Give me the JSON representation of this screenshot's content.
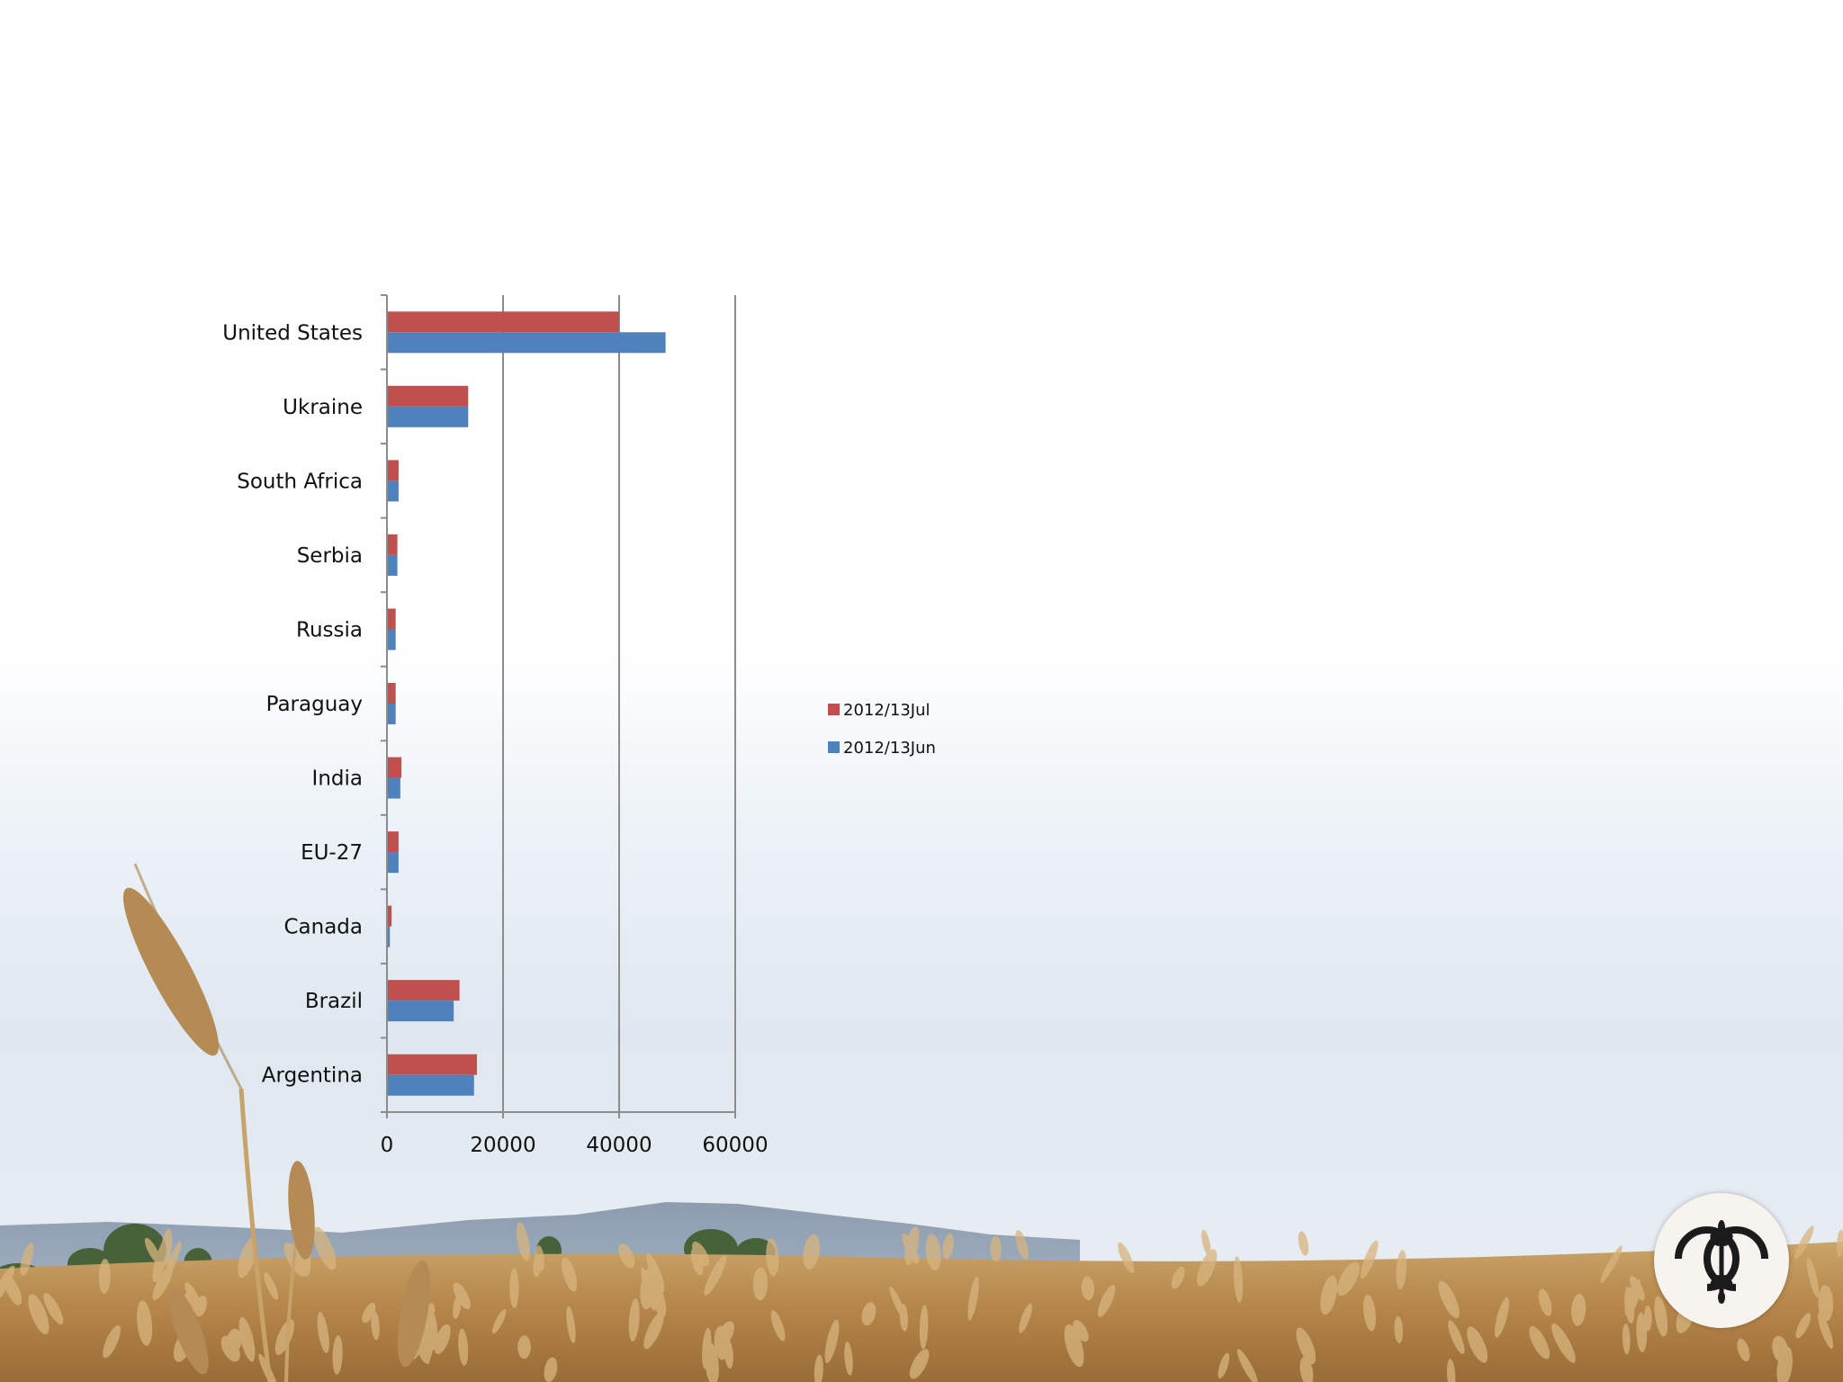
{
  "chart_data": {
    "type": "bar",
    "orientation": "horizontal",
    "categories": [
      "United States",
      "Ukraine",
      "South Africa",
      "Serbia",
      "Russia",
      "Paraguay",
      "India",
      "EU-27",
      "Canada",
      "Brazil",
      "Argentina"
    ],
    "series": [
      {
        "name": "2012/13Jul",
        "color": "#c0504d",
        "values": [
          40000,
          14000,
          2000,
          1800,
          1500,
          1500,
          2500,
          2000,
          800,
          12500,
          15500
        ]
      },
      {
        "name": "2012/13Jun",
        "color": "#4f81bd",
        "values": [
          48000,
          14000,
          2000,
          1800,
          1500,
          1500,
          2300,
          2000,
          500,
          11500,
          15000
        ]
      }
    ],
    "xlim": [
      0,
      60000
    ],
    "xticks": [
      0,
      20000,
      40000,
      60000
    ],
    "x_tick_labels": [
      "0",
      "20000",
      "40000",
      "60000"
    ],
    "grid": "vertical",
    "legend_placement": "right",
    "title": "",
    "xlabel": "",
    "ylabel": ""
  },
  "logo": {
    "name": "cc-wheat-logo-icon"
  }
}
